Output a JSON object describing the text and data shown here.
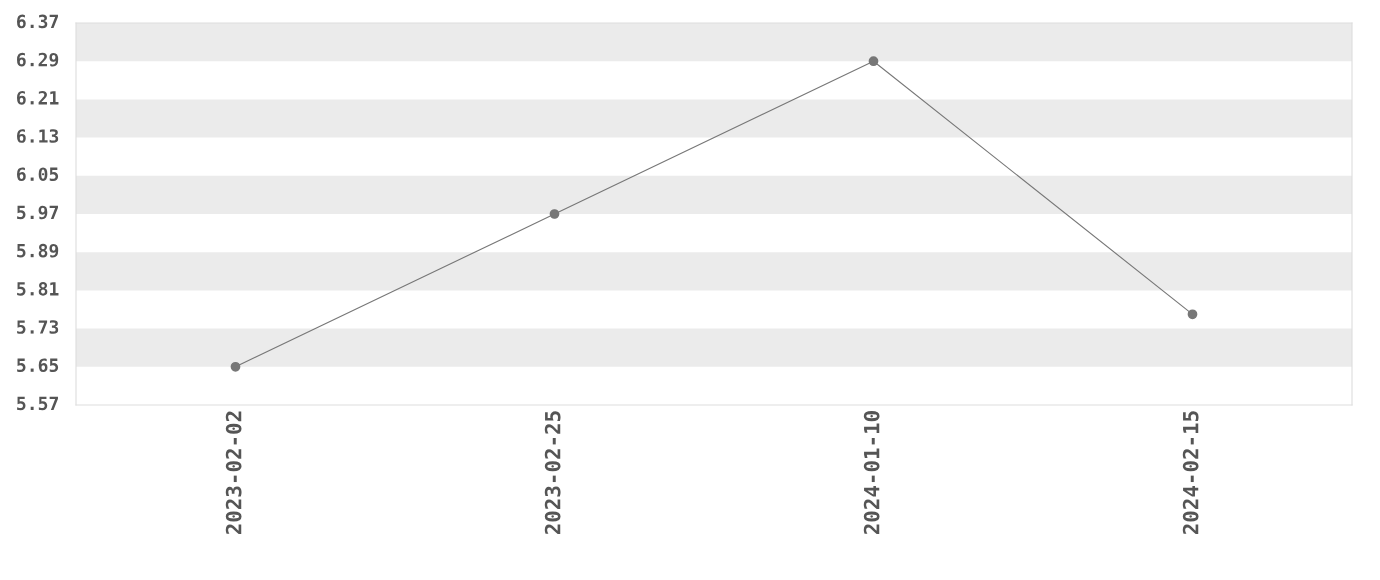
{
  "chart_data": {
    "type": "line",
    "categories": [
      "2023-02-02",
      "2023-02-25",
      "2024-01-10",
      "2024-02-15"
    ],
    "series": [
      {
        "color": "#777777",
        "values": [
          5.65,
          5.97,
          6.29,
          5.76
        ]
      }
    ],
    "ylim": [
      5.57,
      6.37
    ],
    "yticks": [
      5.57,
      5.65,
      5.73,
      5.81,
      5.89,
      5.97,
      6.05,
      6.13,
      6.21,
      6.29,
      6.37
    ],
    "bands": [
      {
        "axis": "y",
        "from": 5.65,
        "to": 5.73,
        "color": "#ebebeb"
      },
      {
        "axis": "y",
        "from": 5.81,
        "to": 5.89,
        "color": "#ebebeb"
      },
      {
        "axis": "y",
        "from": 5.97,
        "to": 6.05,
        "color": "#ebebeb"
      },
      {
        "axis": "y",
        "from": 6.13,
        "to": 6.21,
        "color": "#ebebeb"
      },
      {
        "axis": "y",
        "from": 6.29,
        "to": 6.37,
        "color": "#ebebeb"
      }
    ],
    "marker": "circle",
    "line_style": "solid"
  }
}
